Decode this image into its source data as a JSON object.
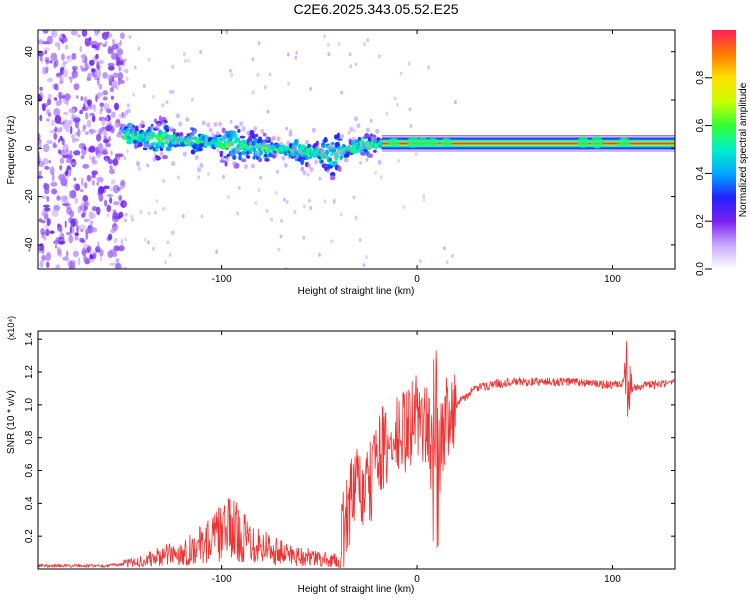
{
  "figure_title": "C2E6.2025.343.05.52.E25",
  "chart_data": [
    {
      "type": "heatmap",
      "title": "C2E6.2025.343.05.52.E25",
      "xlabel": "Height of straight line (km)",
      "ylabel": "Frequency (Hz)",
      "xlim": [
        -194,
        132
      ],
      "ylim": [
        -50,
        49
      ],
      "xticks": [
        -100,
        0,
        100
      ],
      "xtick_labels": [
        "-100",
        "0",
        "100"
      ],
      "yticks": [
        -40,
        -20,
        0,
        20,
        40
      ],
      "ytick_labels": [
        "-40",
        "-20",
        "0",
        "20",
        "40"
      ],
      "colorbar": {
        "label": "Normalized spectral amplitude",
        "range": [
          0,
          1
        ],
        "ticks": [
          0.0,
          0.2,
          0.4,
          0.6,
          0.8
        ],
        "tick_labels": [
          "0.0",
          "0.2",
          "0.4",
          "0.6",
          "0.8"
        ]
      },
      "features": {
        "noise_region_x": [
          -194,
          -150
        ],
        "signal_band": [
          {
            "x": -150,
            "freq": 5
          },
          {
            "x": -130,
            "freq": 4
          },
          {
            "x": -100,
            "freq": 2
          },
          {
            "x": -80,
            "freq": 0
          },
          {
            "x": -60,
            "freq": -1
          },
          {
            "x": -45,
            "freq": -3
          },
          {
            "x": -30,
            "freq": 1
          },
          {
            "x": -20,
            "freq": 2
          },
          {
            "x": 0,
            "freq": 2
          },
          {
            "x": 132,
            "freq": 2
          }
        ]
      }
    },
    {
      "type": "line",
      "title": "",
      "xlabel": "Height of straight line (km)",
      "ylabel": "SNR (10 * v/v)",
      "scale_label": "(x10⁴)",
      "xlim": [
        -194,
        132
      ],
      "ylim": [
        0,
        1.45
      ],
      "xticks": [
        -100,
        0,
        100
      ],
      "xtick_labels": [
        "-100",
        "0",
        "100"
      ],
      "yticks": [
        0.2,
        0.4,
        0.6,
        0.8,
        1.0,
        1.2,
        1.4
      ],
      "ytick_labels": [
        "0.2",
        "0.4",
        "0.6",
        "0.8",
        "1.0",
        "1.2",
        "1.4"
      ],
      "series": [
        {
          "name": "SNR",
          "color": "#ee3333",
          "x": [
            -194,
            -160,
            -150,
            -140,
            -130,
            -120,
            -110,
            -100,
            -95,
            -90,
            -80,
            -70,
            -60,
            -50,
            -40,
            -35,
            -30,
            -25,
            -20,
            -15,
            -10,
            -5,
            0,
            5,
            10,
            15,
            20,
            30,
            40,
            50,
            60,
            70,
            80,
            90,
            100,
            105,
            108,
            110,
            115,
            120,
            132
          ],
          "values": [
            0.02,
            0.02,
            0.03,
            0.05,
            0.08,
            0.1,
            0.15,
            0.22,
            0.25,
            0.2,
            0.15,
            0.1,
            0.08,
            0.06,
            0.05,
            0.4,
            0.5,
            0.45,
            0.75,
            0.7,
            0.8,
            0.85,
            0.95,
            0.85,
            0.6,
            0.95,
            1.0,
            1.1,
            1.13,
            1.14,
            1.14,
            1.14,
            1.14,
            1.13,
            1.12,
            1.12,
            1.2,
            1.1,
            1.12,
            1.12,
            1.13
          ]
        }
      ],
      "grid": false
    }
  ]
}
